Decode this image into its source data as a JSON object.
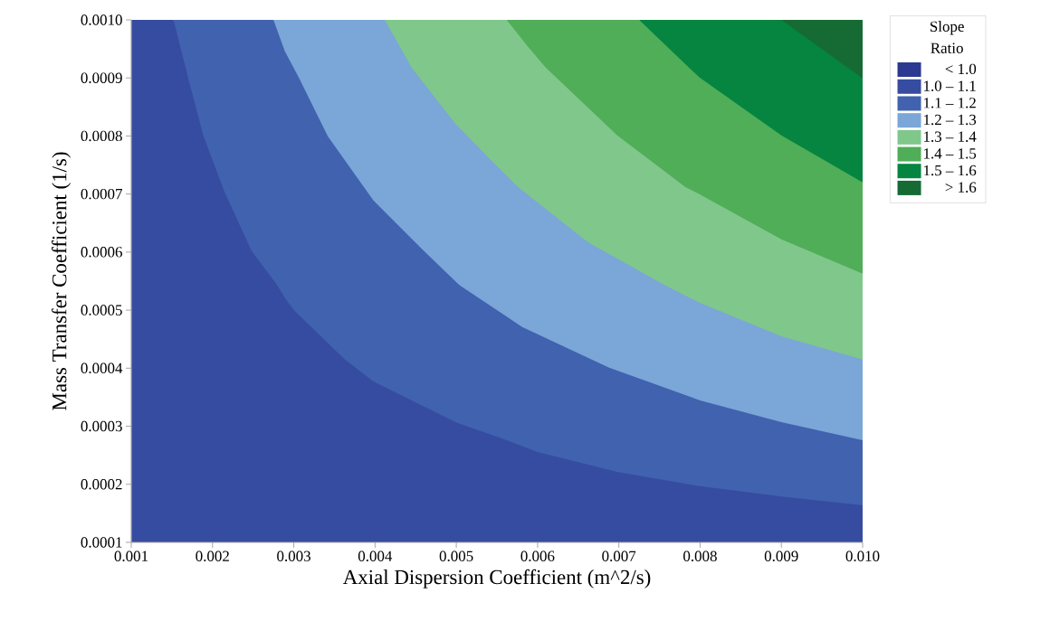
{
  "chart_data": {
    "type": "area",
    "xlabel": "Axial Dispersion Coefficient (m^2/s)",
    "ylabel": "Mass Transfer Coefficient (1/s)",
    "legend_title": "Slope Ratio",
    "legend": "right",
    "xlim": [
      0.001,
      0.01
    ],
    "ylim": [
      0.0001,
      0.001
    ],
    "xticks": [
      0.001,
      0.002,
      0.003,
      0.004,
      0.005,
      0.006,
      0.007,
      0.008,
      0.009,
      {
        "value": 0.01,
        "label": "0.010"
      }
    ],
    "yticks": [
      0.0001,
      0.0002,
      0.0003,
      0.0004,
      0.0005,
      0.0006,
      0.0007,
      0.0008,
      0.0009,
      {
        "value": 0.001,
        "label": "0.0010"
      }
    ],
    "series": [
      {
        "name": "< 1.0",
        "color": "#2b3990"
      },
      {
        "name": "1.0 – 1.1",
        "color": "#364ca0",
        "x": [
          0.001,
          0.00152,
          0.0017,
          0.00189,
          0.00215,
          0.00248,
          0.00279,
          0.00289,
          0.003,
          0.00362,
          0.00398,
          0.00499,
          0.00562,
          0.00599,
          0.00699,
          0.00799,
          0.009,
          0.01
        ],
        "values": [
          0.001,
          0.001,
          0.0009,
          0.000799,
          0.000703,
          0.000602,
          0.000544,
          0.000521,
          0.0005,
          0.000416,
          0.000377,
          0.000307,
          0.000276,
          0.000256,
          0.000221,
          0.000197,
          0.000179,
          0.000164
        ]
      },
      {
        "name": "1.1 – 1.2",
        "color": "#4162ae",
        "x": [
          0.00152,
          0.00275,
          0.00289,
          0.00306,
          0.00342,
          0.00398,
          0.0046,
          0.00503,
          0.00562,
          0.00581,
          0.00688,
          0.00799,
          0.009,
          0.01
        ],
        "values": [
          0.001,
          0.001,
          0.000946,
          0.000901,
          0.000799,
          0.000689,
          0.000602,
          0.000544,
          0.000489,
          0.000471,
          0.000401,
          0.000345,
          0.000307,
          0.000276
        ]
      },
      {
        "name": "1.2 – 1.3",
        "color": "#7ba6d8",
        "x": [
          0.00275,
          0.00412,
          0.00445,
          0.00499,
          0.0054,
          0.00576,
          0.00662,
          0.00699,
          0.00755,
          0.00799,
          0.009,
          0.01
        ],
        "values": [
          0.001,
          0.001,
          0.000918,
          0.000821,
          0.000762,
          0.000712,
          0.000617,
          0.000588,
          0.000544,
          0.000513,
          0.000455,
          0.000415
        ]
      },
      {
        "name": "1.3 – 1.4",
        "color": "#80c78c",
        "x": [
          0.00412,
          0.00562,
          0.00588,
          0.0061,
          0.00698,
          0.00782,
          0.00799,
          0.009,
          0.01
        ],
        "values": [
          0.001,
          0.001,
          0.000954,
          0.000918,
          0.000801,
          0.000712,
          0.0007,
          0.000622,
          0.000563
        ]
      },
      {
        "name": "1.4 – 1.5",
        "color": "#50ad58",
        "x": [
          0.00562,
          0.00725,
          0.00799,
          0.009,
          0.01
        ],
        "values": [
          0.001,
          0.001,
          0.000901,
          0.000801,
          0.00072
        ]
      },
      {
        "name": "1.5 – 1.6",
        "color": "#058540",
        "x": [
          0.00725,
          0.009,
          0.00978,
          0.01
        ],
        "values": [
          0.001,
          0.001,
          null,
          0.000899
        ]
      },
      {
        "name": "> 1.6",
        "color": "#166b35",
        "x": [
          0.009,
          0.01
        ],
        "values": [
          0.001,
          0.001
        ]
      }
    ]
  }
}
